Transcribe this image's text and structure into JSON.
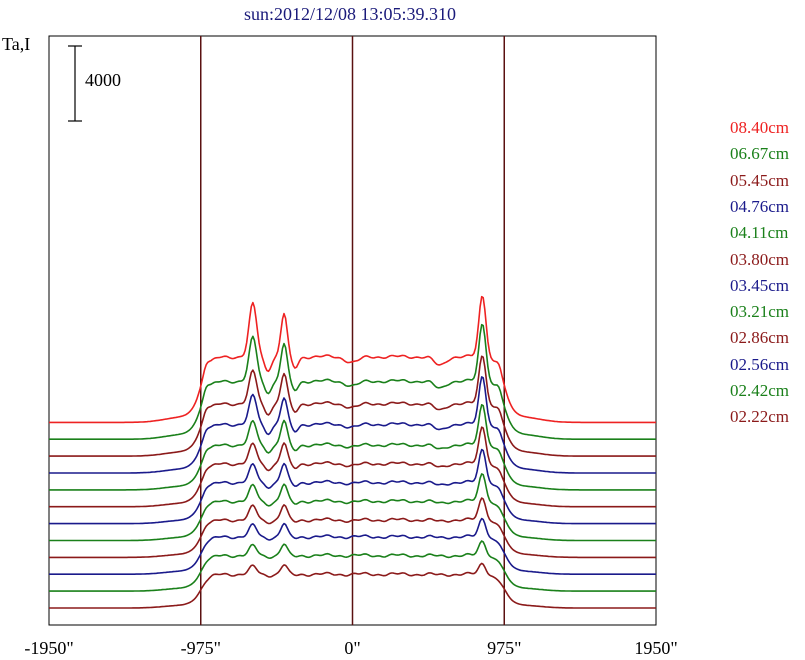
{
  "chart_data": {
    "type": "line",
    "title": "sun:2012/12/08 13:05:39.310",
    "ylabel": "Ta,I",
    "xlabel": "",
    "scale_bar_label": "4000",
    "xlim": [
      -1950,
      1950
    ],
    "x_ticks": [
      {
        "value": -1950,
        "label": "-1950\""
      },
      {
        "value": -975,
        "label": "-975\""
      },
      {
        "value": 0,
        "label": "0\""
      },
      {
        "value": 975,
        "label": "975\""
      },
      {
        "value": 1950,
        "label": "1950\""
      }
    ],
    "vertical_lines": [
      -975,
      0,
      975
    ],
    "colors": {
      "red": "#ee2222",
      "green": "#1a801a",
      "maroon": "#8b1a1a",
      "navy": "#1a1a8b"
    },
    "series": [
      {
        "name": "08.40cm",
        "color": "#ee2222",
        "baseline": 5700,
        "limb_peak": 400,
        "plateau": 3500,
        "center_dip": 300,
        "west_peak": 3300,
        "east_peaks": [
          2800,
          2300
        ],
        "east_dip": 1200
      },
      {
        "name": "06.67cm",
        "color": "#1a801a",
        "baseline": 4800,
        "limb_peak": 400,
        "plateau": 3100,
        "center_dip": 250,
        "west_peak": 3100,
        "east_peaks": [
          2300,
          2000
        ],
        "east_dip": 1000
      },
      {
        "name": "05.45cm",
        "color": "#8b1a1a",
        "baseline": 3900,
        "limb_peak": 350,
        "plateau": 2800,
        "center_dip": 200,
        "west_peak": 2600,
        "east_peaks": [
          1700,
          1600
        ],
        "east_dip": 900
      },
      {
        "name": "04.76cm",
        "color": "#1a1a8b",
        "baseline": 3000,
        "limb_peak": 300,
        "plateau": 2600,
        "center_dip": 150,
        "west_peak": 2600,
        "east_peaks": [
          1500,
          1400
        ],
        "east_dip": 800
      },
      {
        "name": "04.11cm",
        "color": "#1a801a",
        "baseline": 2100,
        "limb_peak": 250,
        "plateau": 2400,
        "center_dip": 100,
        "west_peak": 2200,
        "east_peaks": [
          1200,
          1300
        ],
        "east_dip": 600
      },
      {
        "name": "03.80cm",
        "color": "#8b1a1a",
        "baseline": 1200,
        "limb_peak": 200,
        "plateau": 2300,
        "center_dip": 100,
        "west_peak": 2000,
        "east_peaks": [
          1000,
          1100
        ],
        "east_dip": 500
      },
      {
        "name": "03.45cm",
        "color": "#1a1a8b",
        "baseline": 300,
        "limb_peak": 200,
        "plateau": 2200,
        "center_dip": 50,
        "west_peak": 1800,
        "east_peaks": [
          900,
          1000
        ],
        "east_dip": 400
      },
      {
        "name": "03.21cm",
        "color": "#1a801a",
        "baseline": -600,
        "limb_peak": 150,
        "plateau": 2100,
        "center_dip": 50,
        "west_peak": 1500,
        "east_peaks": [
          800,
          900
        ],
        "east_dip": 300
      },
      {
        "name": "02.86cm",
        "color": "#8b1a1a",
        "baseline": -1500,
        "limb_peak": 150,
        "plateau": 2000,
        "center_dip": 50,
        "west_peak": 1200,
        "east_peaks": [
          700,
          800
        ],
        "east_dip": 200
      },
      {
        "name": "02.56cm",
        "color": "#1a1a8b",
        "baseline": -2400,
        "limb_peak": 100,
        "plateau": 2000,
        "center_dip": 0,
        "west_peak": 1000,
        "east_peaks": [
          600,
          700
        ],
        "east_dip": 150
      },
      {
        "name": "02.42cm",
        "color": "#1a801a",
        "baseline": -3300,
        "limb_peak": 100,
        "plateau": 1900,
        "center_dip": 0,
        "west_peak": 800,
        "east_peaks": [
          500,
          600
        ],
        "east_dip": 100
      },
      {
        "name": "02.22cm",
        "color": "#8b1a1a",
        "baseline": -4200,
        "limb_peak": 50,
        "plateau": 1800,
        "center_dip": 0,
        "west_peak": 600,
        "east_peaks": [
          400,
          500
        ],
        "east_dip": 100
      }
    ]
  }
}
